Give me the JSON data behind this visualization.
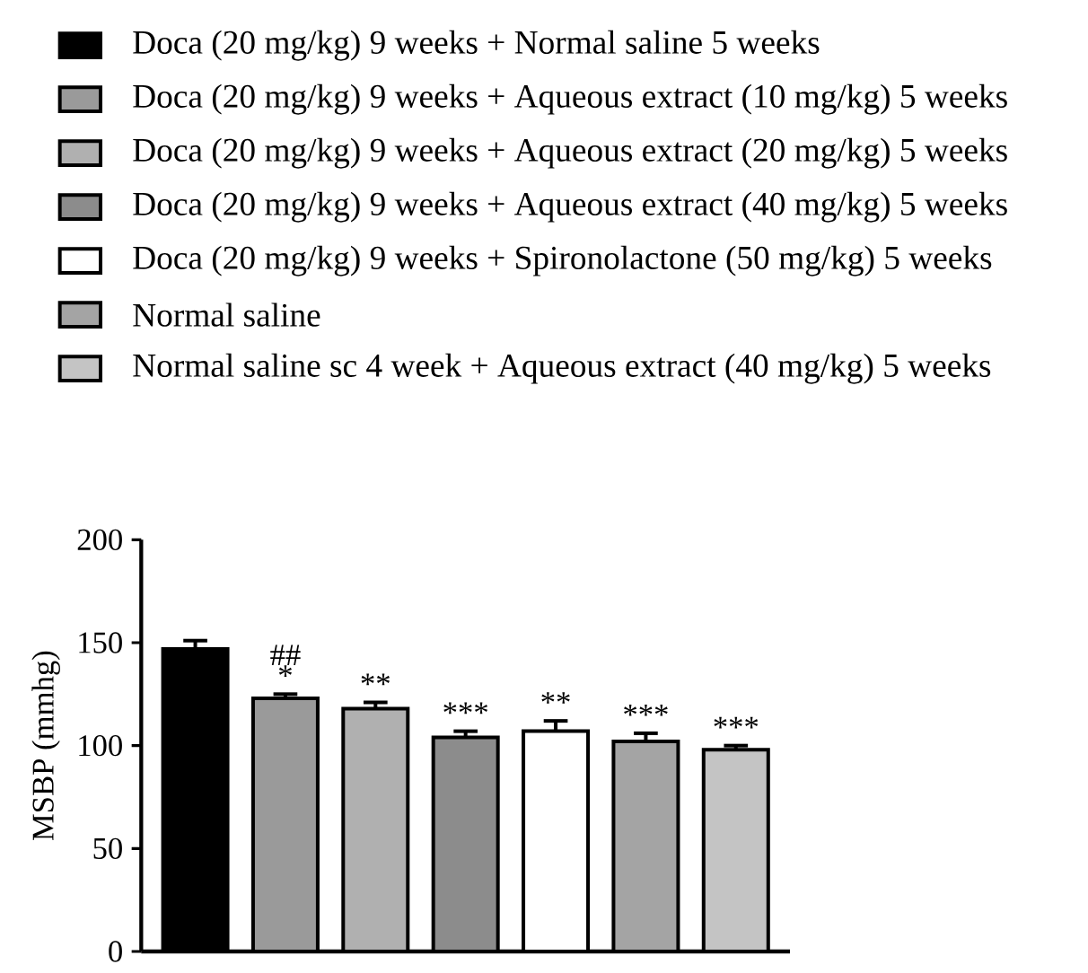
{
  "chart_data": {
    "type": "bar",
    "ylabel": "MSBP (mmhg)",
    "categories": [
      null,
      null,
      null,
      null,
      null,
      null,
      null
    ],
    "series": [
      {
        "name": "Doca (20 mg/kg) 9 weeks + Normal saline 5 weeks",
        "color": "#000000",
        "values": [
          147,
          null,
          null,
          null,
          null,
          null,
          null
        ],
        "errors": [
          4,
          null,
          null,
          null,
          null,
          null,
          null
        ]
      },
      {
        "name": "Doca (20 mg/kg) 9 weeks + Aqueous extract (10 mg/kg) 5 weeks",
        "color": "#9a9a9a",
        "values": [
          null,
          123,
          null,
          null,
          null,
          null,
          null
        ],
        "errors": [
          null,
          2,
          null,
          null,
          null,
          null,
          null
        ]
      },
      {
        "name": "Doca (20 mg/kg) 9 weeks + Aqueous extract (20 mg/kg) 5 weeks",
        "color": "#b0b0b0",
        "values": [
          null,
          null,
          118,
          null,
          null,
          null,
          null
        ],
        "errors": [
          null,
          null,
          3,
          null,
          null,
          null,
          null
        ]
      },
      {
        "name": "Doca (20 mg/kg) 9 weeks + Aqueous extract (40 mg/kg) 5 weeks",
        "color": "#8c8c8c",
        "values": [
          null,
          null,
          null,
          104,
          null,
          null,
          null
        ],
        "errors": [
          null,
          null,
          null,
          3,
          null,
          null,
          null
        ]
      },
      {
        "name": "Doca (20 mg/kg) 9 weeks + Spironolactone (50 mg/kg) 5 weeks",
        "color": "#ffffff",
        "values": [
          null,
          null,
          null,
          null,
          107,
          null,
          null
        ],
        "errors": [
          null,
          null,
          null,
          null,
          5,
          null,
          null
        ]
      },
      {
        "name": "Normal saline",
        "color": "#a4a4a4",
        "values": [
          null,
          null,
          null,
          null,
          null,
          102,
          null
        ],
        "errors": [
          null,
          null,
          null,
          null,
          null,
          4,
          null
        ]
      },
      {
        "name": "Normal saline sc 4 week + Aqueous extract (40 mg/kg) 5 weeks",
        "color": "#c4c4c4",
        "values": [
          null,
          null,
          null,
          null,
          null,
          null,
          98
        ],
        "errors": [
          null,
          null,
          null,
          null,
          null,
          null,
          2
        ]
      }
    ],
    "ylim": [
      0,
      200
    ],
    "yticks": [
      0,
      50,
      100,
      150,
      200
    ],
    "grid": false,
    "legend": "top",
    "annotations": [
      "##",
      "*",
      "**",
      "***",
      "**",
      "***",
      "***"
    ]
  }
}
